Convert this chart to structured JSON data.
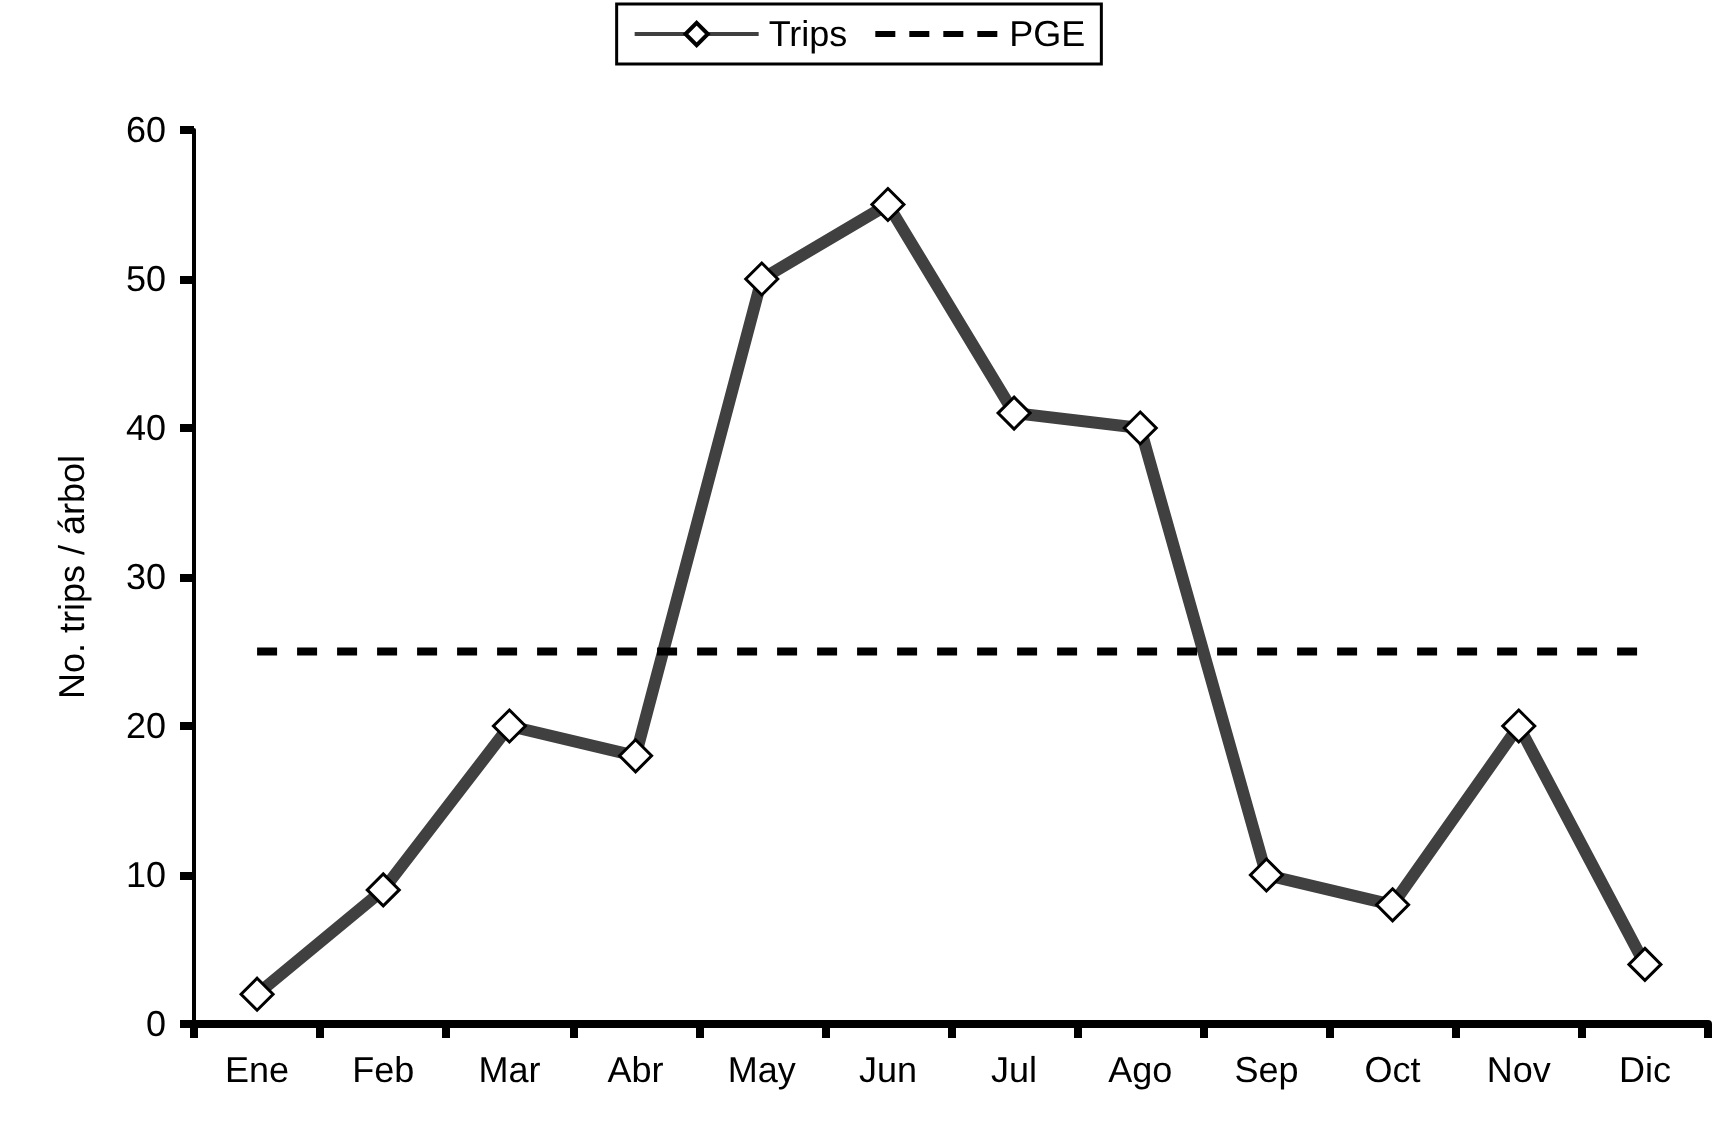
{
  "chart_data": {
    "type": "line",
    "ylabel": "No. trips / árbol",
    "categories": [
      "Ene",
      "Feb",
      "Mar",
      "Abr",
      "May",
      "Jun",
      "Jul",
      "Ago",
      "Sep",
      "Oct",
      "Nov",
      "Dic"
    ],
    "series": [
      {
        "name": "Trips",
        "color": "#404040",
        "marker": "diamond",
        "line_style": "solid",
        "values": [
          2,
          9,
          20,
          18,
          50,
          55,
          41,
          40,
          10,
          8,
          20,
          4
        ]
      },
      {
        "name": "PGE",
        "color": "#000000",
        "marker": "none",
        "line_style": "dashed",
        "values": [
          25,
          25,
          25,
          25,
          25,
          25,
          25,
          25,
          25,
          25,
          25,
          25
        ]
      }
    ],
    "ylim": [
      0,
      60
    ],
    "yticks": [
      0,
      10,
      20,
      30,
      40,
      50,
      60
    ],
    "grid": false,
    "legend": "top"
  }
}
